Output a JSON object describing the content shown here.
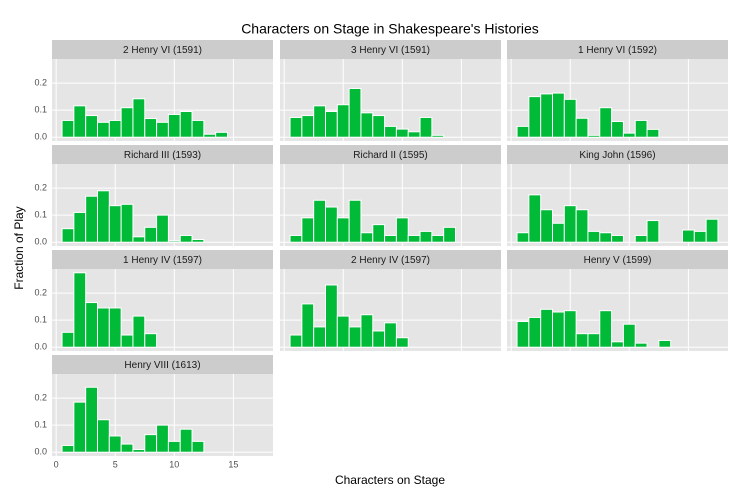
{
  "chart_data": {
    "type": "histogram",
    "title": "Characters on Stage in Shakespeare's Histories",
    "xlabel": "Characters on Stage",
    "ylabel": "Fraction of Play",
    "color": "#00ba38",
    "bins": [
      0.5,
      1.5,
      2.5,
      3.5,
      4.5,
      5.5,
      6.5,
      7.5,
      8.5,
      9.5,
      10.5,
      11.5,
      12.5,
      13.5,
      14.5,
      15.5,
      16.5,
      17.5
    ],
    "xlim": [
      -0.35,
      18.35
    ],
    "xticks": [
      0,
      5,
      10,
      15
    ],
    "ylim": [
      -0.014,
      0.289
    ],
    "yticks": [
      {
        "value": 0,
        "label": "0.0"
      },
      {
        "value": 0.1,
        "label": "0.1"
      },
      {
        "value": 0.2,
        "label": "0.2"
      }
    ],
    "grid": true,
    "panels": [
      {
        "title": "2 Henry VI (1591)",
        "values": [
          0.062,
          0.116,
          0.08,
          0.055,
          0.062,
          0.109,
          0.142,
          0.069,
          0.055,
          0.084,
          0.095,
          0.062,
          0.011,
          0.018,
          0,
          0,
          0
        ]
      },
      {
        "title": "3 Henry VI (1591)",
        "values": [
          0.073,
          0.08,
          0.116,
          0.095,
          0.12,
          0.18,
          0.09,
          0.08,
          0.04,
          0.03,
          0.02,
          0.073,
          0.007,
          0,
          0,
          0,
          0
        ]
      },
      {
        "title": "1 Henry VI (1592)",
        "values": [
          0.04,
          0.15,
          0.16,
          0.163,
          0.14,
          0.07,
          0.007,
          0.109,
          0.058,
          0.015,
          0.062,
          0.029,
          0,
          0,
          0,
          0,
          0
        ]
      },
      {
        "title": "Richard III (1593)",
        "values": [
          0.05,
          0.11,
          0.17,
          0.19,
          0.135,
          0.14,
          0.02,
          0.055,
          0.1,
          0.005,
          0.025,
          0.01,
          0,
          0,
          0,
          0,
          0
        ]
      },
      {
        "title": "Richard II (1595)",
        "values": [
          0.025,
          0.09,
          0.155,
          0.13,
          0.09,
          0.155,
          0.035,
          0.065,
          0.025,
          0.09,
          0.025,
          0.04,
          0.025,
          0.055,
          0,
          0,
          0
        ]
      },
      {
        "title": "King John (1596)",
        "values": [
          0.035,
          0.175,
          0.12,
          0.07,
          0.135,
          0.12,
          0.04,
          0.035,
          0.025,
          0,
          0.025,
          0.08,
          0,
          0,
          0.045,
          0.04,
          0.085
        ]
      },
      {
        "title": "1 Henry IV (1597)",
        "values": [
          0.055,
          0.275,
          0.165,
          0.145,
          0.145,
          0.045,
          0.115,
          0.05,
          0,
          0,
          0,
          0,
          0,
          0,
          0,
          0,
          0
        ]
      },
      {
        "title": "2 Henry IV (1597)",
        "values": [
          0.045,
          0.16,
          0.075,
          0.23,
          0.115,
          0.075,
          0.12,
          0.06,
          0.09,
          0.035,
          0,
          0,
          0,
          0,
          0,
          0,
          0
        ]
      },
      {
        "title": "Henry V (1599)",
        "values": [
          0.095,
          0.11,
          0.14,
          0.13,
          0.135,
          0.05,
          0.05,
          0.135,
          0.02,
          0.085,
          0.015,
          0,
          0.025,
          0,
          0,
          0,
          0
        ]
      },
      {
        "title": "Henry VIII (1613)",
        "values": [
          0.025,
          0.185,
          0.24,
          0.12,
          0.06,
          0.03,
          0.01,
          0.065,
          0.1,
          0.04,
          0.085,
          0.04,
          0,
          0,
          0,
          0,
          0
        ]
      }
    ]
  }
}
